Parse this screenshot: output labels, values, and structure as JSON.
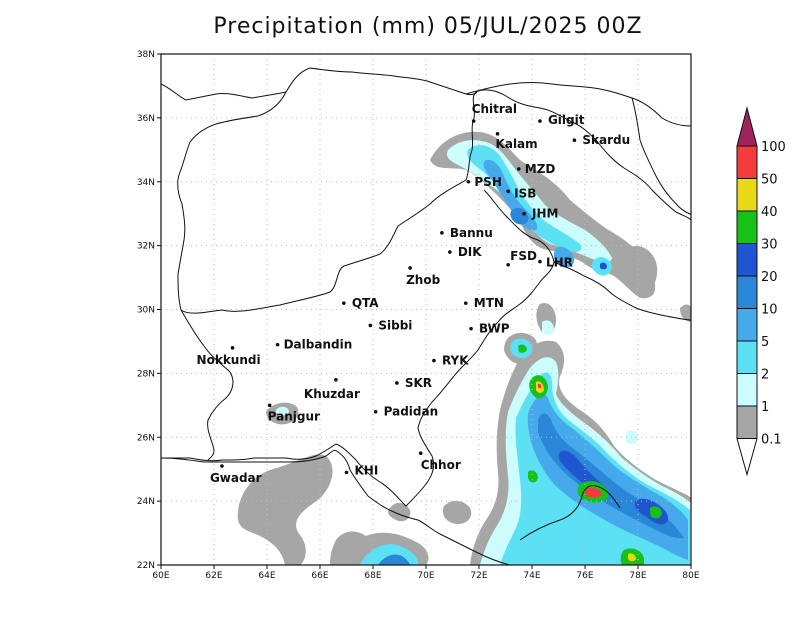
{
  "title": "Precipitation (mm) 05/JUL/2025 00Z",
  "map": {
    "lon_range": [
      60,
      80
    ],
    "lat_range": [
      22,
      38
    ],
    "x_ticks": [
      "60E",
      "62E",
      "64E",
      "66E",
      "68E",
      "70E",
      "72E",
      "74E",
      "76E",
      "78E",
      "80E"
    ],
    "y_ticks": [
      "22N",
      "24N",
      "26N",
      "28N",
      "30N",
      "32N",
      "34N",
      "36N",
      "38N"
    ],
    "grid": "dotted"
  },
  "cities": [
    {
      "name": "Chitral",
      "lon": 71.8,
      "lat": 35.9
    },
    {
      "name": "Gilgit",
      "lon": 74.3,
      "lat": 35.9
    },
    {
      "name": "Kalam",
      "lon": 72.7,
      "lat": 35.5
    },
    {
      "name": "Skardu",
      "lon": 75.6,
      "lat": 35.3
    },
    {
      "name": "MZD",
      "lon": 73.5,
      "lat": 34.4
    },
    {
      "name": "PSH",
      "lon": 71.6,
      "lat": 34.0
    },
    {
      "name": "ISB",
      "lon": 73.1,
      "lat": 33.7
    },
    {
      "name": "JHM",
      "lon": 73.7,
      "lat": 33.0
    },
    {
      "name": "Bannu",
      "lon": 70.6,
      "lat": 32.4
    },
    {
      "name": "DIK",
      "lon": 70.9,
      "lat": 31.8
    },
    {
      "name": "FSD",
      "lon": 73.1,
      "lat": 31.4
    },
    {
      "name": "LHR",
      "lon": 74.3,
      "lat": 31.5
    },
    {
      "name": "Zhob",
      "lon": 69.4,
      "lat": 31.3
    },
    {
      "name": "QTA",
      "lon": 66.9,
      "lat": 30.2
    },
    {
      "name": "MTN",
      "lon": 71.5,
      "lat": 30.2
    },
    {
      "name": "Sibbi",
      "lon": 67.9,
      "lat": 29.5
    },
    {
      "name": "BWP",
      "lon": 71.7,
      "lat": 29.4
    },
    {
      "name": "Dalbandin",
      "lon": 64.4,
      "lat": 28.9
    },
    {
      "name": "Nokkundi",
      "lon": 62.7,
      "lat": 28.8
    },
    {
      "name": "RYK",
      "lon": 70.3,
      "lat": 28.4
    },
    {
      "name": "Khuzdar",
      "lon": 66.6,
      "lat": 27.8
    },
    {
      "name": "SKR",
      "lon": 68.9,
      "lat": 27.7
    },
    {
      "name": "Panjgur",
      "lon": 64.1,
      "lat": 27.0
    },
    {
      "name": "Padidan",
      "lon": 68.1,
      "lat": 26.8
    },
    {
      "name": "Chhor",
      "lon": 69.8,
      "lat": 25.5
    },
    {
      "name": "KHI",
      "lon": 67.0,
      "lat": 24.9
    },
    {
      "name": "Gwadar",
      "lon": 62.3,
      "lat": 25.1
    }
  ],
  "colorbar": {
    "labels": [
      "0.1",
      "1",
      "2",
      "5",
      "10",
      "20",
      "30",
      "40",
      "50",
      "100"
    ],
    "colors": [
      "#a6a6a6",
      "#ccfcfc",
      "#5ce1f4",
      "#45a9ec",
      "#2a86d6",
      "#1f55d0",
      "#18c118",
      "#e8d818",
      "#f43c3c",
      "#a0245c"
    ]
  }
}
